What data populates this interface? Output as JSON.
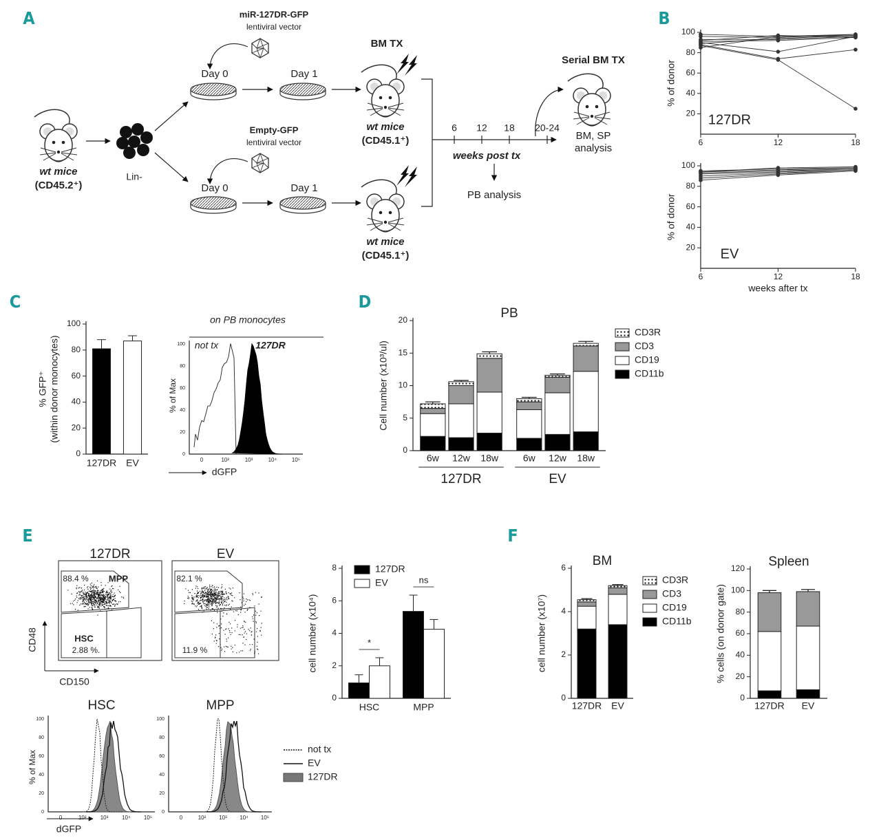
{
  "panel_labels": [
    "A",
    "B",
    "C",
    "D",
    "E",
    "F"
  ],
  "schematic": {
    "vectors": [
      {
        "name": "miR-127DR-GFP",
        "sub": "lentiviral vector"
      },
      {
        "name": "Empty-GFP",
        "sub": "lentiviral vector"
      }
    ],
    "donor": {
      "name": "wt mice",
      "sub": "(CD45.2⁺)"
    },
    "cells": "Lin-",
    "days": [
      "Day 0",
      "Day 1",
      "Day 0",
      "Day 1"
    ],
    "transplant": "BM TX",
    "recipients": [
      {
        "name": "wt mice",
        "sub": "(CD45.1⁺)"
      },
      {
        "name": "wt mice",
        "sub": "(CD45.1⁺)"
      }
    ],
    "timeline": {
      "ticks": [
        "6",
        "12",
        "18",
        "20-24"
      ],
      "label": "weeks post tx",
      "readout": "PB analysis"
    },
    "serial": {
      "title": "Serial BM TX",
      "readout": [
        "BM, SP",
        "analysis"
      ]
    }
  },
  "chart_data": [
    {
      "type": "line",
      "label": "127DR",
      "ylabel": "% of donor",
      "x": [
        6,
        12,
        18
      ],
      "xlim": [
        6,
        18
      ],
      "xticks": [
        6,
        12,
        18
      ],
      "ylim": [
        0,
        100
      ],
      "yticks": [
        20,
        40,
        60,
        80,
        100
      ],
      "color": "#333333",
      "series": [
        {
          "values": [
            98,
            96,
            97
          ]
        },
        {
          "values": [
            96,
            95,
            98
          ]
        },
        {
          "values": [
            93,
            93,
            96
          ]
        },
        {
          "values": [
            91,
            92,
            95
          ]
        },
        {
          "values": [
            89,
            94,
            97
          ]
        },
        {
          "values": [
            90,
            81,
            96
          ]
        },
        {
          "values": [
            88,
            74,
            83
          ]
        },
        {
          "values": [
            87,
            73,
            25
          ]
        },
        {
          "values": [
            85,
            96,
            98
          ]
        },
        {
          "values": [
            92,
            97,
            95
          ]
        }
      ]
    },
    {
      "type": "line",
      "label": "EV",
      "ylabel": "% of donor",
      "xlabel": "weeks after tx",
      "x": [
        6,
        12,
        18
      ],
      "xlim": [
        6,
        18
      ],
      "xticks": [
        6,
        12,
        18
      ],
      "ylim": [
        0,
        100
      ],
      "yticks": [
        20,
        40,
        60,
        80,
        100
      ],
      "color": "#333333",
      "series": [
        {
          "values": [
            95,
            97,
            98
          ]
        },
        {
          "values": [
            94,
            96,
            98
          ]
        },
        {
          "values": [
            93,
            95,
            97
          ]
        },
        {
          "values": [
            92,
            94,
            97
          ]
        },
        {
          "values": [
            90,
            93,
            96
          ]
        },
        {
          "values": [
            88,
            92,
            96
          ]
        },
        {
          "values": [
            86,
            91,
            95
          ]
        },
        {
          "values": [
            94,
            98,
            99
          ]
        }
      ]
    },
    {
      "type": "bar",
      "ylabel": [
        "% GFP⁺",
        "(within donor monocytes)"
      ],
      "categories": [
        "127DR",
        "EV"
      ],
      "values": [
        81,
        87
      ],
      "errors": [
        7,
        4
      ],
      "colors": [
        "#000000",
        "#ffffff"
      ],
      "ylim": [
        0,
        100
      ],
      "yticks": [
        0,
        20,
        40,
        60,
        80,
        100
      ]
    },
    {
      "type": "stacked",
      "title": "PB",
      "ylabel": "Cell number (x10³/ul)",
      "categories": [
        "6w",
        "12w",
        "18w",
        "6w",
        "12w",
        "18w"
      ],
      "groups": [
        "127DR",
        "EV"
      ],
      "ylim": [
        0,
        20
      ],
      "yticks": [
        0,
        5,
        10,
        15,
        20
      ],
      "legend": true,
      "series": [
        {
          "name": "CD11b",
          "color": "#000000",
          "values": [
            2.2,
            2.0,
            2.7,
            1.9,
            2.5,
            2.9
          ],
          "errors": [
            0.4,
            0.4,
            0.8,
            0.3,
            0.3,
            0.3
          ]
        },
        {
          "name": "CD19",
          "color": "#ffffff",
          "values": [
            3.5,
            5.2,
            6.3,
            4.4,
            6.4,
            9.3
          ],
          "errors": [
            0.5,
            0.4,
            0.9,
            0.2,
            0.9,
            2.0
          ]
        },
        {
          "name": "CD3",
          "color": "#999999",
          "values": [
            0.8,
            2.8,
            5.2,
            1.2,
            2.4,
            3.9
          ],
          "errors": [
            0.2,
            0.2,
            0.2,
            0.2,
            0.2,
            0.2
          ]
        },
        {
          "name": "CD3R",
          "color": "#ffffff",
          "pattern": "dots",
          "values": [
            0.7,
            0.6,
            0.7,
            0.5,
            0.3,
            0.4
          ],
          "errors": [
            0.3,
            0.2,
            0.3,
            0.2,
            0.2,
            0.3
          ]
        }
      ]
    },
    {
      "type": "grouped",
      "ylabel": "cell number (x10⁴)",
      "categories": [
        "HSC",
        "MPP"
      ],
      "ylim": [
        0,
        8
      ],
      "yticks": [
        0,
        2,
        4,
        6,
        8
      ],
      "legend": true,
      "annotations": [
        "*",
        "ns"
      ],
      "series": [
        {
          "name": "127DR",
          "color": "#000000",
          "values": [
            0.95,
            5.35
          ],
          "errors": [
            0.5,
            1.0
          ]
        },
        {
          "name": "EV",
          "color": "#ffffff",
          "values": [
            2.0,
            4.25
          ],
          "errors": [
            0.5,
            0.6
          ]
        }
      ]
    },
    {
      "type": "stacked",
      "title": "BM",
      "ylabel": "cell number (x10⁷)",
      "categories": [
        "127DR",
        "EV"
      ],
      "ylim": [
        0,
        6
      ],
      "yticks": [
        0,
        2,
        4,
        6
      ],
      "legend": true,
      "series": [
        {
          "name": "CD11b",
          "color": "#000000",
          "values": [
            3.2,
            3.4
          ],
          "errors": [
            0.5,
            0.3
          ]
        },
        {
          "name": "CD19",
          "color": "#ffffff",
          "values": [
            1.05,
            1.4
          ],
          "errors": [
            0.1,
            0.1
          ]
        },
        {
          "name": "CD3",
          "color": "#999999",
          "values": [
            0.2,
            0.3
          ],
          "errors": [
            0.05,
            0.05
          ]
        },
        {
          "name": "CD3R",
          "color": "#ffffff",
          "pattern": "dots",
          "values": [
            0.1,
            0.1
          ],
          "errors": [
            0.05,
            0.05
          ]
        }
      ]
    },
    {
      "type": "stacked",
      "title": "Spleen",
      "ylabel": "% cells (on donor gate)",
      "categories": [
        "127DR",
        "EV"
      ],
      "ylim": [
        0,
        120
      ],
      "yticks": [
        0,
        20,
        40,
        60,
        80,
        100,
        120
      ],
      "legend": false,
      "series": [
        {
          "name": "CD11b",
          "color": "#000000",
          "values": [
            7,
            8
          ],
          "errors": [
            1,
            1
          ]
        },
        {
          "name": "CD19",
          "color": "#ffffff",
          "values": [
            55,
            59
          ],
          "errors": [
            3,
            3
          ]
        },
        {
          "name": "CD3",
          "color": "#999999",
          "values": [
            36,
            32
          ],
          "errors": [
            2,
            2
          ]
        }
      ]
    }
  ],
  "flow_plots": {
    "monocytes": {
      "title": "on PB monocytes",
      "labels": [
        "not tx",
        "127DR"
      ],
      "ylabel": "% of Max",
      "xlabel": "dGFP",
      "yticks": [
        "0",
        "20",
        "40",
        "60",
        "80",
        "100"
      ],
      "xticks": [
        "0",
        "10²",
        "10³",
        "10⁴",
        "10⁵"
      ]
    },
    "gates": {
      "plots": [
        {
          "title": "127DR",
          "values": [
            "88.4 %",
            "2.88 %."
          ]
        },
        {
          "title": "EV",
          "values": [
            "82.1 %",
            "11.9 %"
          ]
        }
      ],
      "gate_names": [
        "MPP",
        "HSC"
      ],
      "ylabel": "CD48",
      "xlabel": "CD150"
    },
    "populations": {
      "plots": [
        "HSC",
        "MPP"
      ],
      "ylabel": "% of Max",
      "xlabel": "dGFP",
      "legend": [
        "not tx",
        "EV",
        "127DR"
      ],
      "yticks": [
        "0",
        "20",
        "40",
        "60",
        "80",
        "100"
      ],
      "xticks": [
        "0",
        "10²",
        "10³",
        "10⁴",
        "10⁵"
      ]
    }
  }
}
